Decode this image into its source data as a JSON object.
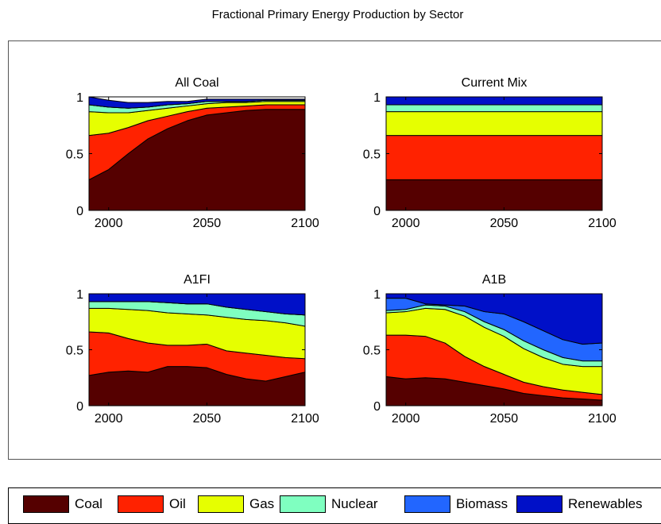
{
  "figure": {
    "title": "Fractional Primary Energy Production by Sector"
  },
  "legend": {
    "items": [
      {
        "label": "Coal",
        "color": "#550000"
      },
      {
        "label": "Oil",
        "color": "#ff2200"
      },
      {
        "label": "Gas",
        "color": "#e6ff00"
      },
      {
        "label": "Nuclear",
        "color": "#7fffc0"
      },
      {
        "label": "Biomass",
        "color": "#2266ff"
      },
      {
        "label": "Renewables",
        "color": "#0010c8"
      }
    ]
  },
  "chart_data": [
    {
      "type": "area",
      "stacked": true,
      "title": "All Coal",
      "xlim": [
        1990,
        2100
      ],
      "ylim": [
        0,
        1
      ],
      "xticks": [
        2000,
        2050,
        2100
      ],
      "yticks": [
        0,
        0.5,
        1
      ],
      "ytick_labels": [
        "0",
        "0.5",
        "1"
      ],
      "x": [
        1990,
        2000,
        2010,
        2020,
        2030,
        2040,
        2050,
        2060,
        2070,
        2080,
        2090,
        2100
      ],
      "series": [
        {
          "name": "Coal",
          "values": [
            0.27,
            0.36,
            0.5,
            0.63,
            0.72,
            0.79,
            0.84,
            0.86,
            0.88,
            0.89,
            0.89,
            0.89
          ]
        },
        {
          "name": "Oil",
          "values": [
            0.39,
            0.32,
            0.23,
            0.16,
            0.11,
            0.08,
            0.06,
            0.05,
            0.04,
            0.04,
            0.04,
            0.04
          ]
        },
        {
          "name": "Gas",
          "values": [
            0.21,
            0.18,
            0.13,
            0.09,
            0.07,
            0.05,
            0.04,
            0.04,
            0.03,
            0.03,
            0.03,
            0.03
          ]
        },
        {
          "name": "Nuclear",
          "values": [
            0.06,
            0.05,
            0.04,
            0.03,
            0.03,
            0.02,
            0.02,
            0.01,
            0.01,
            0.01,
            0.01,
            0.01
          ]
        },
        {
          "name": "Biomass",
          "values": [
            0.0,
            0.0,
            0.0,
            0.0,
            0.0,
            0.0,
            0.0,
            0.0,
            0.0,
            0.0,
            0.0,
            0.0
          ]
        },
        {
          "name": "Renewables",
          "values": [
            0.07,
            0.06,
            0.05,
            0.04,
            0.03,
            0.02,
            0.02,
            0.02,
            0.02,
            0.01,
            0.01,
            0.01
          ]
        }
      ]
    },
    {
      "type": "area",
      "stacked": true,
      "title": "Current Mix",
      "xlim": [
        1990,
        2100
      ],
      "ylim": [
        0,
        1
      ],
      "xticks": [
        2000,
        2050,
        2100
      ],
      "yticks": [
        0,
        0.5,
        1
      ],
      "ytick_labels": [
        "0",
        "0.5",
        "1"
      ],
      "x": [
        1990,
        2100
      ],
      "series": [
        {
          "name": "Coal",
          "values": [
            0.27,
            0.27
          ]
        },
        {
          "name": "Oil",
          "values": [
            0.39,
            0.39
          ]
        },
        {
          "name": "Gas",
          "values": [
            0.21,
            0.21
          ]
        },
        {
          "name": "Nuclear",
          "values": [
            0.06,
            0.06
          ]
        },
        {
          "name": "Biomass",
          "values": [
            0.0,
            0.0
          ]
        },
        {
          "name": "Renewables",
          "values": [
            0.07,
            0.07
          ]
        }
      ]
    },
    {
      "type": "area",
      "stacked": true,
      "title": "A1FI",
      "xlim": [
        1990,
        2100
      ],
      "ylim": [
        0,
        1
      ],
      "xticks": [
        2000,
        2050,
        2100
      ],
      "yticks": [
        0,
        0.5,
        1
      ],
      "ytick_labels": [
        "0",
        "0.5",
        "1"
      ],
      "x": [
        1990,
        2000,
        2010,
        2020,
        2030,
        2040,
        2050,
        2060,
        2070,
        2080,
        2090,
        2100
      ],
      "series": [
        {
          "name": "Coal",
          "values": [
            0.27,
            0.3,
            0.31,
            0.3,
            0.35,
            0.35,
            0.34,
            0.28,
            0.24,
            0.22,
            0.26,
            0.3
          ]
        },
        {
          "name": "Oil",
          "values": [
            0.39,
            0.35,
            0.29,
            0.26,
            0.19,
            0.19,
            0.21,
            0.21,
            0.23,
            0.23,
            0.17,
            0.12
          ]
        },
        {
          "name": "Gas",
          "values": [
            0.21,
            0.22,
            0.26,
            0.29,
            0.29,
            0.28,
            0.26,
            0.3,
            0.3,
            0.31,
            0.31,
            0.29
          ]
        },
        {
          "name": "Nuclear",
          "values": [
            0.06,
            0.06,
            0.07,
            0.08,
            0.09,
            0.09,
            0.1,
            0.09,
            0.09,
            0.08,
            0.08,
            0.1
          ]
        },
        {
          "name": "Biomass",
          "values": [
            0.0,
            0.0,
            0.0,
            0.0,
            0.0,
            0.0,
            0.0,
            0.0,
            0.0,
            0.0,
            0.0,
            0.0
          ]
        },
        {
          "name": "Renewables",
          "values": [
            0.07,
            0.07,
            0.07,
            0.07,
            0.08,
            0.09,
            0.09,
            0.12,
            0.14,
            0.16,
            0.18,
            0.19
          ]
        }
      ]
    },
    {
      "type": "area",
      "stacked": true,
      "title": "A1B",
      "xlim": [
        1990,
        2100
      ],
      "ylim": [
        0,
        1
      ],
      "xticks": [
        2000,
        2050,
        2100
      ],
      "yticks": [
        0,
        0.5,
        1
      ],
      "ytick_labels": [
        "0",
        "0.5",
        "1"
      ],
      "x": [
        1990,
        2000,
        2010,
        2020,
        2030,
        2040,
        2050,
        2060,
        2070,
        2080,
        2090,
        2100
      ],
      "series": [
        {
          "name": "Coal",
          "values": [
            0.26,
            0.24,
            0.25,
            0.24,
            0.21,
            0.18,
            0.15,
            0.11,
            0.09,
            0.07,
            0.06,
            0.05
          ]
        },
        {
          "name": "Oil",
          "values": [
            0.37,
            0.39,
            0.37,
            0.32,
            0.23,
            0.17,
            0.13,
            0.1,
            0.08,
            0.07,
            0.06,
            0.05
          ]
        },
        {
          "name": "Gas",
          "values": [
            0.2,
            0.21,
            0.25,
            0.3,
            0.36,
            0.35,
            0.34,
            0.3,
            0.26,
            0.23,
            0.23,
            0.25
          ]
        },
        {
          "name": "Nuclear",
          "values": [
            0.02,
            0.02,
            0.03,
            0.03,
            0.04,
            0.05,
            0.06,
            0.07,
            0.07,
            0.06,
            0.05,
            0.05
          ]
        },
        {
          "name": "Biomass",
          "values": [
            0.11,
            0.1,
            0.01,
            0.01,
            0.05,
            0.09,
            0.14,
            0.17,
            0.17,
            0.16,
            0.15,
            0.16
          ]
        },
        {
          "name": "Renewables",
          "values": [
            0.04,
            0.04,
            0.09,
            0.1,
            0.11,
            0.16,
            0.18,
            0.25,
            0.33,
            0.41,
            0.45,
            0.44
          ]
        }
      ]
    }
  ]
}
